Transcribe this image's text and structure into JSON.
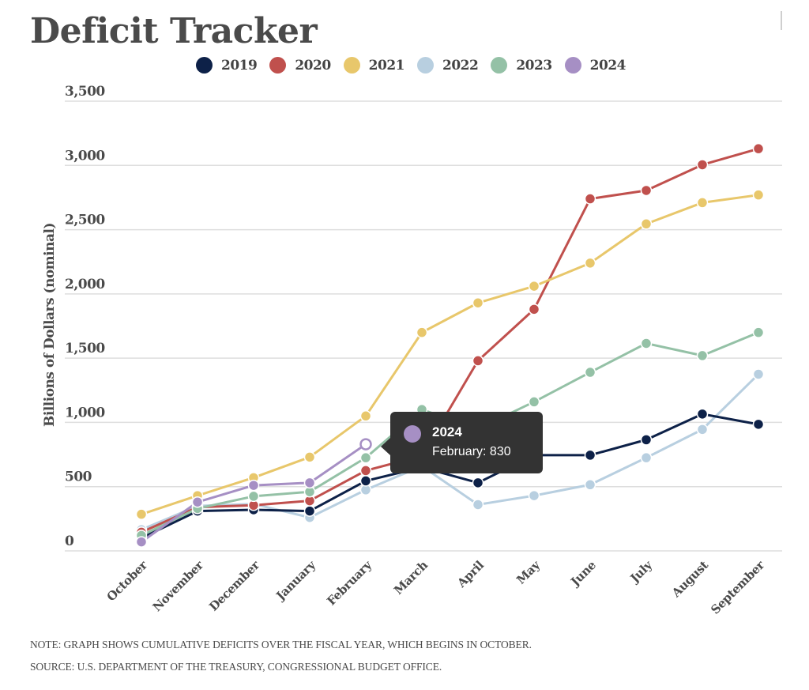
{
  "page": {
    "title": "Deficit Tracker",
    "note": "NOTE: GRAPH SHOWS CUMULATIVE DEFICITS OVER THE FISCAL YEAR, WHICH BEGINS IN OCTOBER.",
    "source": "SOURCE: U.S. DEPARTMENT OF THE TREASURY, CONGRESSIONAL BUDGET OFFICE."
  },
  "legend": [
    {
      "label": "2019",
      "color": "#0d2148"
    },
    {
      "label": "2020",
      "color": "#c0504d"
    },
    {
      "label": "2021",
      "color": "#e8c76b"
    },
    {
      "label": "2022",
      "color": "#b8cfe0"
    },
    {
      "label": "2023",
      "color": "#94c1a6"
    },
    {
      "label": "2024",
      "color": "#a68fc4"
    }
  ],
  "tooltip": {
    "series": "2024",
    "text": "February: 830",
    "color": "#a68fc4"
  },
  "chart_data": {
    "type": "line",
    "title": "Deficit Tracker",
    "xlabel": "",
    "ylabel": "Billions of Dollars (nominal)",
    "ylim": [
      0,
      3500
    ],
    "yticks": [
      0,
      500,
      1000,
      1500,
      2000,
      2500,
      3000,
      3500
    ],
    "ytick_labels": [
      "0",
      "500",
      "1,000",
      "1,500",
      "2,000",
      "2,500",
      "3,000",
      "3,500"
    ],
    "grid": true,
    "legend_position": "top-center",
    "categories": [
      "October",
      "November",
      "December",
      "January",
      "February",
      "March",
      "April",
      "May",
      "June",
      "July",
      "August",
      "September"
    ],
    "series": [
      {
        "name": "2019",
        "color": "#0d2148",
        "values": [
          100,
          310,
          320,
          310,
          545,
          650,
          530,
          745,
          745,
          865,
          1065,
          985
        ]
      },
      {
        "name": "2020",
        "color": "#c0504d",
        "values": [
          145,
          340,
          355,
          390,
          625,
          740,
          1480,
          1880,
          2740,
          2805,
          3005,
          3130
        ]
      },
      {
        "name": "2021",
        "color": "#e8c76b",
        "values": [
          285,
          430,
          570,
          730,
          1050,
          1700,
          1930,
          2060,
          2240,
          2545,
          2710,
          2770
        ]
      },
      {
        "name": "2022",
        "color": "#b8cfe0",
        "values": [
          165,
          350,
          365,
          260,
          475,
          660,
          360,
          430,
          515,
          725,
          945,
          1375
        ]
      },
      {
        "name": "2023",
        "color": "#94c1a6",
        "values": [
          120,
          330,
          425,
          460,
          725,
          1100,
          950,
          1160,
          1390,
          1615,
          1520,
          1700
        ]
      },
      {
        "name": "2024",
        "color": "#a68fc4",
        "values": [
          70,
          380,
          510,
          530,
          830
        ]
      }
    ],
    "highlighted_point": {
      "series": "2024",
      "category": "February",
      "value": 830
    }
  }
}
